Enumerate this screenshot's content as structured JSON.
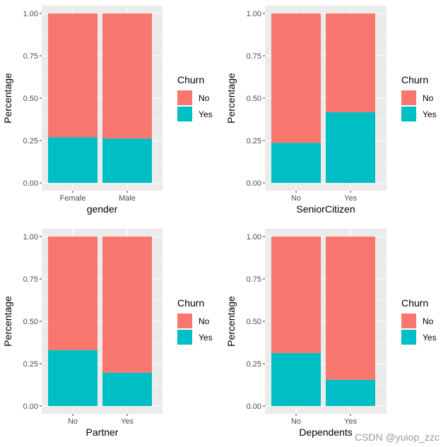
{
  "colors": {
    "No": "#F8766D",
    "Yes": "#00BFC4",
    "panel_bg": "#EBEBEB",
    "grid": "#FFFFFF"
  },
  "watermark": "CSDN @yuiop_zzc",
  "chart_data": [
    {
      "type": "bar",
      "stacked": true,
      "xlabel": "gender",
      "ylabel": "Percentage",
      "ylim": [
        0,
        1
      ],
      "yticks": [
        "0.00",
        "0.25",
        "0.50",
        "0.75",
        "1.00"
      ],
      "categories": [
        "Female",
        "Male"
      ],
      "series": [
        {
          "name": "No",
          "values": [
            0.731,
            0.738
          ]
        },
        {
          "name": "Yes",
          "values": [
            0.269,
            0.262
          ]
        }
      ],
      "legend": {
        "title": "Churn",
        "position": "right"
      },
      "grid": true
    },
    {
      "type": "bar",
      "stacked": true,
      "xlabel": "SeniorCitizen",
      "ylabel": "Percentage",
      "ylim": [
        0,
        1
      ],
      "yticks": [
        "0.00",
        "0.25",
        "0.50",
        "0.75",
        "1.00"
      ],
      "categories": [
        "No",
        "Yes"
      ],
      "series": [
        {
          "name": "No",
          "values": [
            0.764,
            0.583
          ]
        },
        {
          "name": "Yes",
          "values": [
            0.236,
            0.417
          ]
        }
      ],
      "legend": {
        "title": "Churn",
        "position": "right"
      },
      "grid": true
    },
    {
      "type": "bar",
      "stacked": true,
      "xlabel": "Partner",
      "ylabel": "Percentage",
      "ylim": [
        0,
        1
      ],
      "yticks": [
        "0.00",
        "0.25",
        "0.50",
        "0.75",
        "1.00"
      ],
      "categories": [
        "No",
        "Yes"
      ],
      "series": [
        {
          "name": "No",
          "values": [
            0.67,
            0.803
          ]
        },
        {
          "name": "Yes",
          "values": [
            0.33,
            0.197
          ]
        }
      ],
      "legend": {
        "title": "Churn",
        "position": "right"
      },
      "grid": true
    },
    {
      "type": "bar",
      "stacked": true,
      "xlabel": "Dependents",
      "ylabel": "Percentage",
      "ylim": [
        0,
        1
      ],
      "yticks": [
        "0.00",
        "0.25",
        "0.50",
        "0.75",
        "1.00"
      ],
      "categories": [
        "No",
        "Yes"
      ],
      "series": [
        {
          "name": "No",
          "values": [
            0.687,
            0.845
          ]
        },
        {
          "name": "Yes",
          "values": [
            0.313,
            0.155
          ]
        }
      ],
      "legend": {
        "title": "Churn",
        "position": "right"
      },
      "grid": true
    }
  ]
}
